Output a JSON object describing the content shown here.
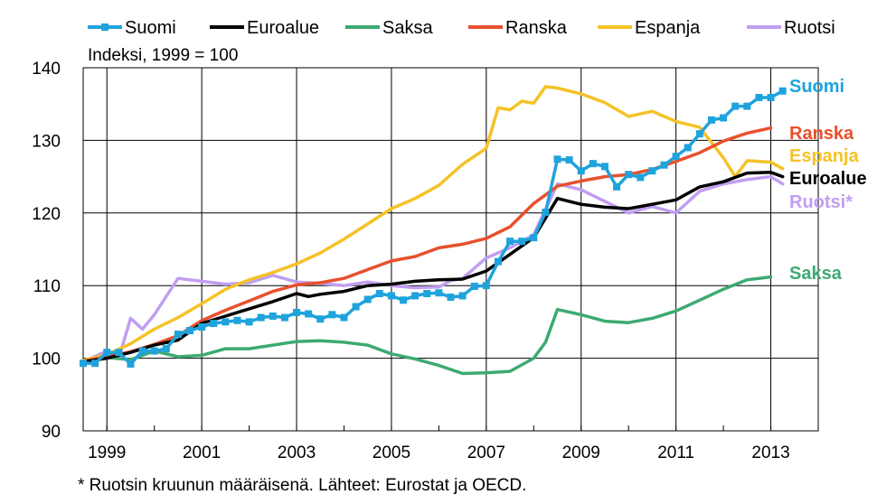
{
  "chart_data": {
    "type": "line",
    "subtitle": "Indeksi, 1999 = 100",
    "footnote": "* Ruotsin kruunun määräisenä. Lähteet: Eurostat ja OECD.",
    "xlim": [
      1998.5,
      2014.0
    ],
    "ylim": [
      90,
      140
    ],
    "y_ticks": [
      90,
      100,
      110,
      120,
      130,
      140
    ],
    "x_ticks": [
      1999,
      2001,
      2003,
      2005,
      2007,
      2009,
      2011,
      2013
    ],
    "x_tick_labels": [
      "1999",
      "2001",
      "2003",
      "2005",
      "2007",
      "2009",
      "2011",
      "2013"
    ],
    "y_tick_labels": [
      "90",
      "100",
      "110",
      "120",
      "130",
      "140"
    ],
    "legend": [
      "Suomi",
      "Euroalue",
      "Saksa",
      "Ranska",
      "Espanja",
      "Ruotsi"
    ],
    "series": [
      {
        "name": "Suomi",
        "end_label": "Suomi",
        "color": "#1fa3dc",
        "marker": "square",
        "x": [
          1998.5,
          1998.75,
          1999,
          1999.25,
          1999.5,
          1999.75,
          2000,
          2000.25,
          2000.5,
          2000.75,
          2001,
          2001.25,
          2001.5,
          2001.75,
          2002,
          2002.25,
          2002.5,
          2002.75,
          2003,
          2003.25,
          2003.5,
          2003.75,
          2004,
          2004.25,
          2004.5,
          2004.75,
          2005,
          2005.25,
          2005.5,
          2005.75,
          2006,
          2006.25,
          2006.5,
          2006.75,
          2007,
          2007.25,
          2007.5,
          2007.75,
          2008,
          2008.25,
          2008.5,
          2008.75,
          2009,
          2009.25,
          2009.5,
          2009.75,
          2010,
          2010.25,
          2010.5,
          2010.75,
          2011,
          2011.25,
          2011.5,
          2011.75,
          2012,
          2012.25,
          2012.5,
          2012.75,
          2013,
          2013.25
        ],
        "y": [
          99.3,
          99.3,
          100.8,
          100.8,
          99.2,
          101.0,
          101.0,
          101.3,
          103.3,
          103.8,
          104.3,
          104.8,
          105.0,
          105.2,
          105.0,
          105.6,
          105.8,
          105.6,
          106.3,
          106.1,
          105.4,
          106.0,
          105.6,
          107.1,
          108.1,
          108.9,
          108.6,
          108.0,
          108.6,
          108.9,
          109.0,
          108.4,
          108.6,
          109.9,
          110.0,
          113.3,
          116.1,
          116.1,
          116.6,
          120.1,
          127.4,
          127.3,
          125.8,
          126.8,
          126.4,
          123.6,
          125.3,
          124.9,
          125.8,
          126.6,
          127.8,
          129.0,
          130.9,
          132.8,
          133.1,
          134.7,
          134.7,
          135.9,
          135.9,
          136.8
        ]
      },
      {
        "name": "Euroalue",
        "end_label": "Euroalue",
        "color": "#000000",
        "marker": "none",
        "x": [
          1998.5,
          1999,
          1999.5,
          2000,
          2000.5,
          2001,
          2001.5,
          2002,
          2002.5,
          2003,
          2003.25,
          2003.5,
          2004,
          2004.5,
          2005,
          2005.5,
          2006,
          2006.5,
          2007,
          2007.5,
          2008,
          2008.5,
          2009,
          2009.5,
          2010,
          2010.5,
          2011,
          2011.5,
          2012,
          2012.5,
          2013,
          2013.25
        ],
        "y": [
          99.5,
          100.0,
          100.8,
          101.8,
          102.5,
          104.8,
          105.8,
          106.8,
          107.8,
          108.9,
          108.5,
          108.8,
          109.2,
          110.0,
          110.2,
          110.6,
          110.8,
          110.9,
          112.0,
          114.3,
          116.6,
          122.0,
          121.2,
          120.8,
          120.6,
          121.2,
          121.8,
          123.6,
          124.3,
          125.5,
          125.6,
          125.0
        ]
      },
      {
        "name": "Saksa",
        "end_label": "Saksa",
        "color": "#3daa72",
        "marker": "none",
        "x": [
          1998.5,
          1999,
          1999.5,
          2000,
          2000.5,
          2001,
          2001.5,
          2002,
          2002.5,
          2003,
          2003.5,
          2004,
          2004.5,
          2005,
          2005.5,
          2006,
          2006.5,
          2007,
          2007.5,
          2008,
          2008.25,
          2008.5,
          2009,
          2009.5,
          2010,
          2010.5,
          2011,
          2011.5,
          2012,
          2012.5,
          2013
        ],
        "y": [
          99.6,
          100.1,
          99.8,
          101.0,
          100.2,
          100.4,
          101.3,
          101.3,
          101.8,
          102.3,
          102.4,
          102.2,
          101.8,
          100.6,
          99.9,
          99.0,
          97.9,
          98.0,
          98.2,
          100.0,
          102.2,
          106.7,
          106.0,
          105.1,
          104.9,
          105.5,
          106.5,
          108.0,
          109.5,
          110.8,
          111.2
        ]
      },
      {
        "name": "Ranska",
        "end_label": "Ranska",
        "color": "#e8502d",
        "marker": "none",
        "x": [
          1998.5,
          1999,
          1999.5,
          2000,
          2000.5,
          2001,
          2001.5,
          2002,
          2002.5,
          2003,
          2003.5,
          2004,
          2004.5,
          2005,
          2005.5,
          2006,
          2006.5,
          2007,
          2007.5,
          2008,
          2008.5,
          2009,
          2009.5,
          2010,
          2010.5,
          2011,
          2011.5,
          2012,
          2012.5,
          2013
        ],
        "y": [
          99.6,
          100.2,
          100.9,
          101.9,
          103.1,
          105.2,
          106.6,
          107.9,
          109.2,
          110.1,
          110.4,
          111.0,
          112.2,
          113.4,
          114.0,
          115.2,
          115.7,
          116.5,
          118.1,
          121.3,
          123.7,
          124.4,
          125.0,
          125.3,
          126.0,
          127.1,
          128.3,
          129.9,
          131.0,
          131.7
        ]
      },
      {
        "name": "Espanja",
        "end_label": "Espanja",
        "color": "#f5c227",
        "marker": "none",
        "x": [
          1998.5,
          1999,
          1999.5,
          2000,
          2000.5,
          2001,
          2001.5,
          2002,
          2002.5,
          2003,
          2003.5,
          2004,
          2004.5,
          2005,
          2005.5,
          2006,
          2006.5,
          2007,
          2007.25,
          2007.5,
          2007.75,
          2008,
          2008.25,
          2008.5,
          2009,
          2009.5,
          2010,
          2010.5,
          2011,
          2011.5,
          2012,
          2012.25,
          2012.5,
          2013,
          2013.25
        ],
        "y": [
          99.7,
          100.5,
          102.0,
          104.0,
          105.6,
          107.5,
          109.5,
          110.8,
          111.8,
          113.0,
          114.5,
          116.4,
          118.5,
          120.6,
          122.0,
          123.8,
          126.7,
          128.9,
          134.5,
          134.2,
          135.4,
          135.1,
          137.4,
          137.2,
          136.4,
          135.2,
          133.3,
          134.0,
          132.6,
          131.8,
          127.6,
          125.0,
          127.2,
          127.0,
          126.1
        ]
      },
      {
        "name": "Ruotsi",
        "end_label": "Ruotsi*",
        "color": "#c19ef2",
        "marker": "none",
        "x": [
          1998.5,
          1999,
          1999.25,
          1999.5,
          1999.75,
          2000,
          2000.25,
          2000.5,
          2001,
          2001.5,
          2002,
          2002.5,
          2003,
          2003.5,
          2004,
          2004.5,
          2005,
          2005.5,
          2006,
          2006.25,
          2006.5,
          2007,
          2007.5,
          2008,
          2008.5,
          2009,
          2009.5,
          2010,
          2010.5,
          2011,
          2011.5,
          2012,
          2012.5,
          2013,
          2013.25
        ],
        "y": [
          99.5,
          101.0,
          100.0,
          105.5,
          104.0,
          106.0,
          108.5,
          111.0,
          110.6,
          110.2,
          110.4,
          111.4,
          110.5,
          110.3,
          110.0,
          110.5,
          110.0,
          109.7,
          109.8,
          110.7,
          111.0,
          113.8,
          115.2,
          117.0,
          124.0,
          123.2,
          121.6,
          120.0,
          120.9,
          120.0,
          123.0,
          124.0,
          124.6,
          125.0,
          124.0
        ]
      }
    ]
  }
}
